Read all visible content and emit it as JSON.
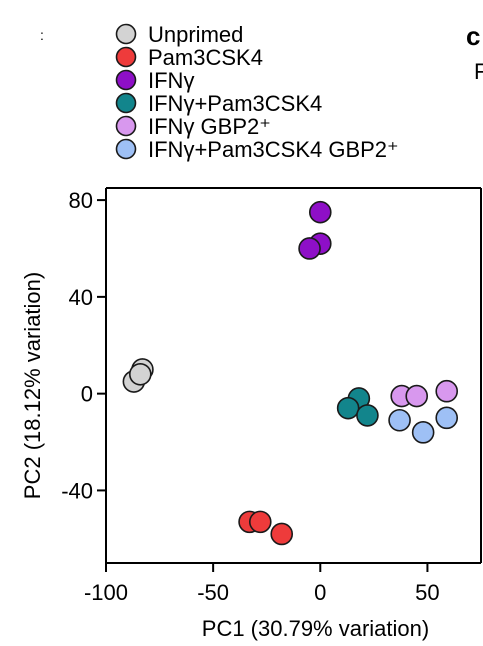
{
  "panel_letter": "c",
  "edge_fragment_right": "F",
  "chart_data": {
    "type": "scatter",
    "xlabel": "PC1 (30.79% variation)",
    "ylabel": "PC2 (18.12% variation)",
    "xlim": [
      -100,
      75
    ],
    "ylim": [
      -70,
      85
    ],
    "xticks": [
      -100,
      -50,
      0,
      50
    ],
    "yticks": [
      80,
      40,
      0,
      -40
    ],
    "xtick_labels": [
      "-100",
      "-50",
      "0",
      "50"
    ],
    "ytick_labels": [
      "80",
      "40",
      "0",
      "-40"
    ],
    "grid": false,
    "legend": "top",
    "series": [
      {
        "name": "Unprimed",
        "color": "#d3d3d3",
        "points": [
          [
            -83,
            10
          ],
          [
            -87,
            5
          ],
          [
            -84,
            8
          ]
        ]
      },
      {
        "name": "Pam3CSK4",
        "color": "#ee3b3b",
        "points": [
          [
            -33,
            -53
          ],
          [
            -28,
            -53
          ],
          [
            -18,
            -58
          ]
        ]
      },
      {
        "name": "IFNγ",
        "color": "#8e0fc7",
        "points": [
          [
            0,
            75
          ],
          [
            0,
            62
          ],
          [
            -5,
            60
          ]
        ]
      },
      {
        "name": "IFNγ+Pam3CSK4",
        "color": "#12858c",
        "points": [
          [
            18,
            -2
          ],
          [
            13,
            -6
          ],
          [
            22,
            -9
          ]
        ]
      },
      {
        "name": "IFNγ GBP2⁺",
        "color": "#d898ee",
        "points": [
          [
            38,
            -1
          ],
          [
            45,
            -1
          ],
          [
            59,
            1
          ]
        ]
      },
      {
        "name": "IFNγ+Pam3CSK4 GBP2⁺",
        "color": "#9ec0f5",
        "points": [
          [
            37,
            -11
          ],
          [
            48,
            -16
          ],
          [
            59,
            -10
          ]
        ]
      }
    ]
  }
}
